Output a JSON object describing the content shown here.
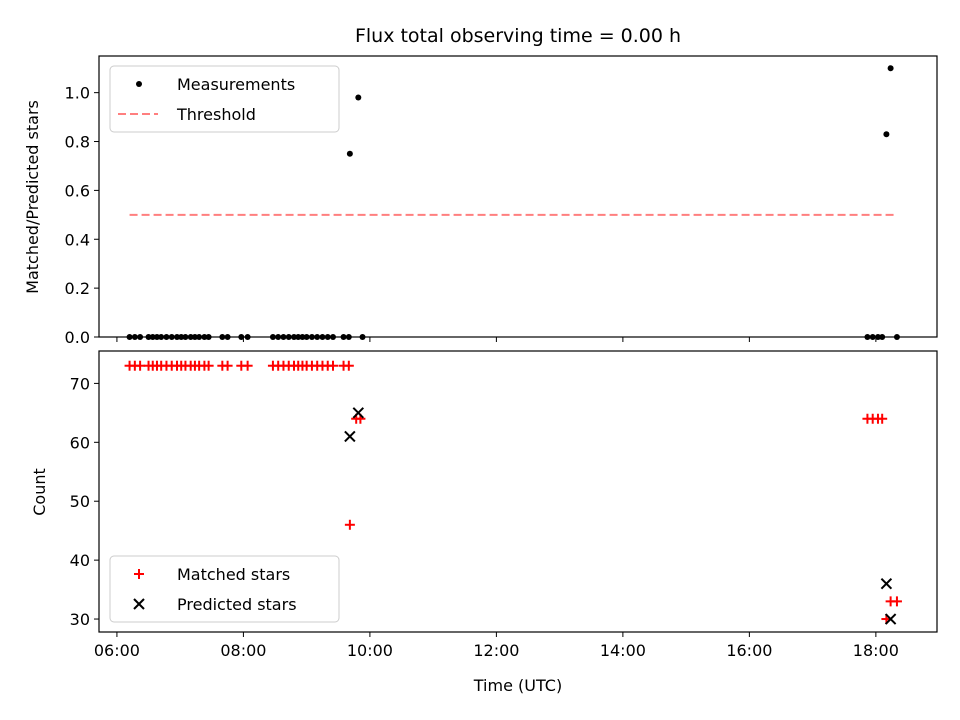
{
  "chart_data": {
    "title": "Flux total observing time = 0.00 h",
    "xlabel": "Time (UTC)",
    "x_unit": "hours (UTC)",
    "xlim": [
      "05:43",
      "18:58"
    ],
    "xticks": [
      "06:00",
      "08:00",
      "10:00",
      "12:00",
      "14:00",
      "16:00",
      "18:00"
    ],
    "panels": [
      {
        "name": "top",
        "type": "scatter",
        "ylabel": "Matched/Predicted stars",
        "ylim": [
          0.0,
          1.15
        ],
        "yticks": [
          "0.0",
          "0.2",
          "0.4",
          "0.6",
          "0.8",
          "1.0"
        ],
        "legend_position": "top-left",
        "series": [
          {
            "name": "Measurements",
            "marker": "dot",
            "color": "#000000",
            "points": [
              [
                "06:12",
                0
              ],
              [
                "06:17",
                0
              ],
              [
                "06:22",
                0
              ],
              [
                "06:30",
                0
              ],
              [
                "06:34",
                0
              ],
              [
                "06:38",
                0
              ],
              [
                "06:42",
                0
              ],
              [
                "06:47",
                0
              ],
              [
                "06:52",
                0
              ],
              [
                "06:57",
                0
              ],
              [
                "07:01",
                0
              ],
              [
                "07:05",
                0
              ],
              [
                "07:10",
                0
              ],
              [
                "07:14",
                0
              ],
              [
                "07:18",
                0
              ],
              [
                "07:23",
                0
              ],
              [
                "07:27",
                0
              ],
              [
                "07:40",
                0
              ],
              [
                "07:45",
                0
              ],
              [
                "07:58",
                0
              ],
              [
                "08:04",
                0
              ],
              [
                "08:28",
                0
              ],
              [
                "08:33",
                0
              ],
              [
                "08:38",
                0
              ],
              [
                "08:43",
                0
              ],
              [
                "08:48",
                0
              ],
              [
                "08:52",
                0
              ],
              [
                "08:56",
                0
              ],
              [
                "09:00",
                0
              ],
              [
                "09:05",
                0
              ],
              [
                "09:10",
                0
              ],
              [
                "09:15",
                0
              ],
              [
                "09:20",
                0
              ],
              [
                "09:25",
                0
              ],
              [
                "09:35",
                0
              ],
              [
                "09:40",
                0
              ],
              [
                "09:41",
                0.75
              ],
              [
                "09:49",
                0.98
              ],
              [
                "09:53",
                0
              ],
              [
                "17:52",
                0
              ],
              [
                "17:57",
                0
              ],
              [
                "18:02",
                0
              ],
              [
                "18:06",
                0
              ],
              [
                "18:10",
                0.83
              ],
              [
                "18:14",
                1.1
              ],
              [
                "18:20",
                0
              ]
            ]
          },
          {
            "name": "Threshold",
            "marker": "dashed-line",
            "color": "#ff7f7f",
            "points": [
              [
                "06:12",
                0.5
              ],
              [
                "18:20",
                0.5
              ]
            ]
          }
        ]
      },
      {
        "name": "bottom",
        "type": "scatter",
        "ylabel": "Count",
        "ylim": [
          27.8,
          75.5
        ],
        "yticks": [
          "30",
          "40",
          "50",
          "60",
          "70"
        ],
        "legend_position": "bottom-left",
        "series": [
          {
            "name": "Matched stars",
            "marker": "plus",
            "color": "#ff0000",
            "points": [
              [
                "06:12",
                73
              ],
              [
                "06:17",
                73
              ],
              [
                "06:22",
                73
              ],
              [
                "06:30",
                73
              ],
              [
                "06:34",
                73
              ],
              [
                "06:38",
                73
              ],
              [
                "06:42",
                73
              ],
              [
                "06:47",
                73
              ],
              [
                "06:52",
                73
              ],
              [
                "06:57",
                73
              ],
              [
                "07:01",
                73
              ],
              [
                "07:05",
                73
              ],
              [
                "07:10",
                73
              ],
              [
                "07:14",
                73
              ],
              [
                "07:18",
                73
              ],
              [
                "07:23",
                73
              ],
              [
                "07:27",
                73
              ],
              [
                "07:40",
                73
              ],
              [
                "07:45",
                73
              ],
              [
                "07:58",
                73
              ],
              [
                "08:04",
                73
              ],
              [
                "08:28",
                73
              ],
              [
                "08:33",
                73
              ],
              [
                "08:38",
                73
              ],
              [
                "08:43",
                73
              ],
              [
                "08:48",
                73
              ],
              [
                "08:52",
                73
              ],
              [
                "08:56",
                73
              ],
              [
                "09:00",
                73
              ],
              [
                "09:05",
                73
              ],
              [
                "09:10",
                73
              ],
              [
                "09:15",
                73
              ],
              [
                "09:20",
                73
              ],
              [
                "09:25",
                73
              ],
              [
                "09:35",
                73
              ],
              [
                "09:40",
                73
              ],
              [
                "09:41",
                46
              ],
              [
                "09:47",
                64
              ],
              [
                "09:51",
                64
              ],
              [
                "17:52",
                64
              ],
              [
                "17:57",
                64
              ],
              [
                "18:02",
                64
              ],
              [
                "18:06",
                64
              ],
              [
                "18:10",
                30
              ],
              [
                "18:14",
                33
              ],
              [
                "18:20",
                33
              ]
            ]
          },
          {
            "name": "Predicted stars",
            "marker": "x",
            "color": "#000000",
            "points": [
              [
                "09:41",
                61
              ],
              [
                "09:49",
                65
              ],
              [
                "18:10",
                36
              ],
              [
                "18:14",
                30
              ]
            ]
          }
        ]
      }
    ]
  }
}
